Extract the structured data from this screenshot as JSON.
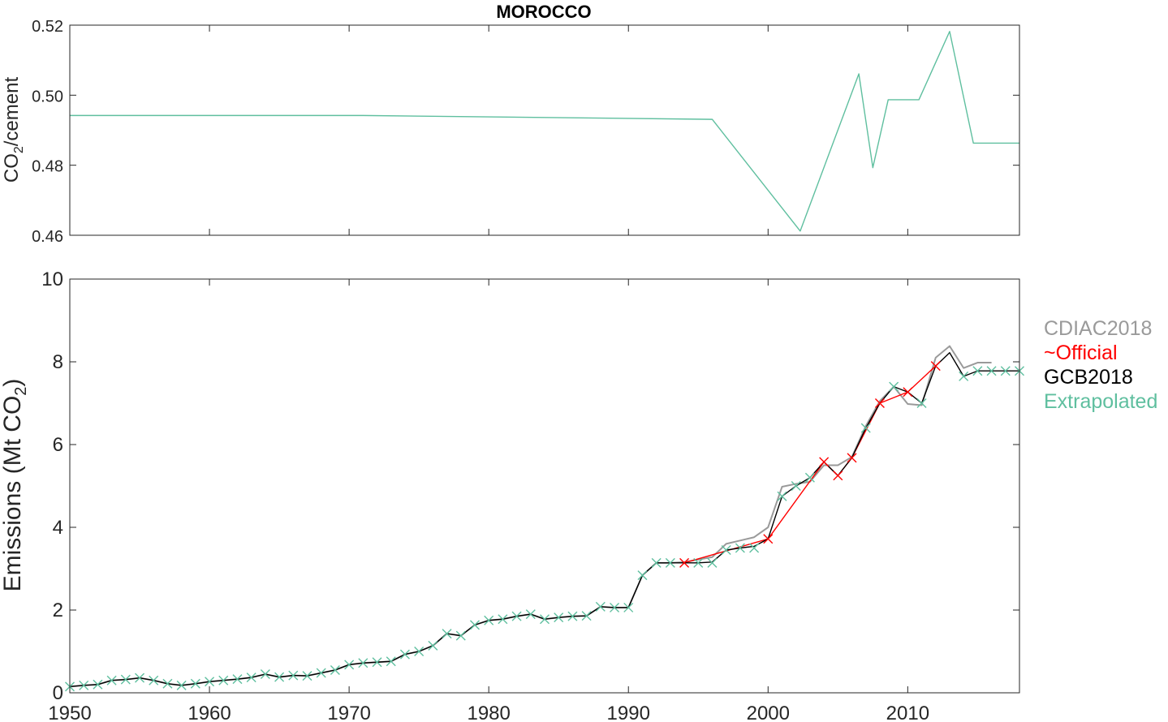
{
  "colors": {
    "cdiac": "#9a9a9a",
    "official": "#ff0000",
    "gcb": "#000000",
    "extrapolated": "#5fbf9f",
    "axis": "#262626"
  },
  "chart_data": [
    {
      "type": "line",
      "title": "MOROCCO",
      "ylabel_parts": [
        "CO",
        "2",
        "/cement"
      ],
      "xlim": [
        1950,
        2018
      ],
      "ylim": [
        0.46,
        0.52
      ],
      "xticks": [
        1950,
        1960,
        1970,
        1980,
        1990,
        2000,
        2010
      ],
      "yticks": [
        0.46,
        0.48,
        0.5,
        0.52
      ],
      "ytick_labels": [
        "0.46",
        "0.48",
        "0.50",
        "0.52"
      ],
      "grid": false,
      "series": [
        {
          "color_key": "extrapolated",
          "x": [
            1950,
            1971,
            1996,
            2002.3,
            2006.5,
            2007.5,
            2008.6,
            2010.8,
            2013,
            2014.7,
            2018
          ],
          "y": [
            0.4942,
            0.4942,
            0.4931,
            0.4612,
            0.5061,
            0.4793,
            0.4987,
            0.4987,
            0.5182,
            0.4863,
            0.4863
          ]
        }
      ]
    },
    {
      "type": "line",
      "ylabel_parts": [
        "Emissions (Mt CO",
        "2",
        ")"
      ],
      "xlim": [
        1950,
        2018
      ],
      "ylim": [
        0,
        10
      ],
      "xticks": [
        1950,
        1960,
        1970,
        1980,
        1990,
        2000,
        2010
      ],
      "yticks": [
        0,
        2,
        4,
        6,
        8,
        10
      ],
      "legend_position": "outside-right",
      "grid": false,
      "series": [
        {
          "name": "CDIAC2018",
          "color_key": "cdiac",
          "x": [
            1950,
            1951,
            1952,
            1953,
            1954,
            1955,
            1956,
            1957,
            1958,
            1959,
            1960,
            1961,
            1962,
            1963,
            1964,
            1965,
            1966,
            1967,
            1968,
            1969,
            1970,
            1971,
            1972,
            1973,
            1974,
            1975,
            1976,
            1977,
            1978,
            1979,
            1980,
            1981,
            1982,
            1983,
            1984,
            1985,
            1986,
            1987,
            1988,
            1989,
            1990,
            1991,
            1992,
            1993,
            1994,
            1995,
            1996,
            1997,
            1998,
            1999,
            2000,
            2001,
            2002,
            2003,
            2004,
            2005,
            2006,
            2007,
            2008,
            2009,
            2010,
            2011,
            2012,
            2013,
            2014,
            2015,
            2016
          ],
          "y": [
            0.15,
            0.18,
            0.2,
            0.3,
            0.32,
            0.36,
            0.3,
            0.22,
            0.18,
            0.22,
            0.27,
            0.3,
            0.33,
            0.37,
            0.45,
            0.38,
            0.42,
            0.41,
            0.48,
            0.55,
            0.68,
            0.72,
            0.74,
            0.76,
            0.93,
            1.0,
            1.14,
            1.43,
            1.38,
            1.64,
            1.75,
            1.78,
            1.85,
            1.9,
            1.78,
            1.82,
            1.85,
            1.86,
            2.08,
            2.06,
            2.06,
            2.84,
            3.14,
            3.14,
            3.16,
            3.22,
            3.28,
            3.6,
            3.68,
            3.76,
            4.0,
            4.98,
            5.05,
            5.1,
            5.5,
            5.5,
            5.7,
            6.45,
            7.05,
            7.4,
            6.98,
            6.95,
            8.1,
            8.38,
            7.85,
            7.98,
            7.98
          ]
        },
        {
          "name": "~Official",
          "color_key": "official",
          "x": [
            1994,
            2000,
            2004,
            2005,
            2006,
            2008,
            2010,
            2012
          ],
          "y": [
            3.14,
            3.72,
            5.58,
            5.25,
            5.68,
            7.0,
            7.27,
            7.9
          ]
        },
        {
          "name": "GCB2018",
          "color_key": "gcb",
          "x": [
            1950,
            1951,
            1952,
            1953,
            1954,
            1955,
            1956,
            1957,
            1958,
            1959,
            1960,
            1961,
            1962,
            1963,
            1964,
            1965,
            1966,
            1967,
            1968,
            1969,
            1970,
            1971,
            1972,
            1973,
            1974,
            1975,
            1976,
            1977,
            1978,
            1979,
            1980,
            1981,
            1982,
            1983,
            1984,
            1985,
            1986,
            1987,
            1988,
            1989,
            1990,
            1991,
            1992,
            1993,
            1994,
            1995,
            1996,
            1997,
            1998,
            1999,
            2000,
            2001,
            2002,
            2003,
            2004,
            2005,
            2006,
            2007,
            2008,
            2009,
            2010,
            2011,
            2012,
            2013,
            2014,
            2015,
            2016,
            2017,
            2018
          ],
          "y": [
            0.15,
            0.18,
            0.2,
            0.3,
            0.32,
            0.36,
            0.3,
            0.22,
            0.18,
            0.22,
            0.27,
            0.3,
            0.33,
            0.37,
            0.45,
            0.38,
            0.42,
            0.41,
            0.48,
            0.55,
            0.68,
            0.72,
            0.74,
            0.76,
            0.93,
            1.0,
            1.14,
            1.43,
            1.38,
            1.64,
            1.75,
            1.78,
            1.85,
            1.9,
            1.78,
            1.82,
            1.85,
            1.86,
            2.08,
            2.06,
            2.06,
            2.84,
            3.14,
            3.14,
            3.14,
            3.14,
            3.16,
            3.45,
            3.5,
            3.54,
            3.72,
            4.75,
            5.0,
            5.2,
            5.58,
            5.25,
            5.68,
            6.4,
            7.0,
            7.4,
            7.27,
            7.0,
            7.9,
            8.22,
            7.65,
            7.78,
            7.78,
            7.78,
            7.78
          ]
        },
        {
          "name": "Extrapolated",
          "color_key": "extrapolated",
          "x": [
            1950,
            1951,
            1952,
            1953,
            1954,
            1955,
            1956,
            1957,
            1958,
            1959,
            1960,
            1961,
            1962,
            1963,
            1964,
            1965,
            1966,
            1967,
            1968,
            1969,
            1970,
            1971,
            1972,
            1973,
            1974,
            1975,
            1976,
            1977,
            1978,
            1979,
            1980,
            1981,
            1982,
            1983,
            1984,
            1985,
            1986,
            1987,
            1988,
            1989,
            1990,
            1991,
            1992,
            1993,
            1995,
            1996,
            1997,
            1998,
            1999,
            2001,
            2002,
            2003,
            2007,
            2009,
            2011,
            2014,
            2015,
            2016,
            2017,
            2018
          ],
          "y": [
            0.15,
            0.18,
            0.2,
            0.3,
            0.32,
            0.36,
            0.3,
            0.22,
            0.18,
            0.22,
            0.27,
            0.3,
            0.33,
            0.37,
            0.45,
            0.38,
            0.42,
            0.41,
            0.48,
            0.55,
            0.68,
            0.72,
            0.74,
            0.76,
            0.93,
            1.0,
            1.14,
            1.43,
            1.38,
            1.64,
            1.75,
            1.78,
            1.85,
            1.9,
            1.78,
            1.82,
            1.85,
            1.86,
            2.08,
            2.06,
            2.06,
            2.84,
            3.14,
            3.14,
            3.14,
            3.14,
            3.45,
            3.5,
            3.5,
            4.75,
            5.0,
            5.2,
            6.4,
            7.4,
            7.0,
            7.65,
            7.78,
            7.78,
            7.78,
            7.78
          ]
        }
      ]
    }
  ]
}
